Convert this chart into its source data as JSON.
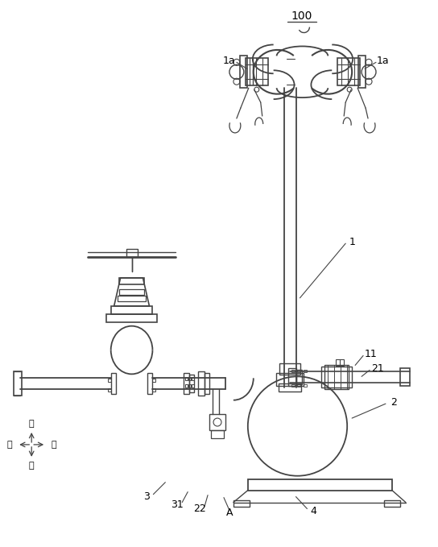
{
  "bg_color": "#ffffff",
  "line_color": "#444444",
  "label_100": "100",
  "label_1a_left": "1a",
  "label_1a_right": "1a",
  "label_1": "1",
  "label_11": "11",
  "label_21": "21",
  "label_2": "2",
  "label_3": "3",
  "label_31": "31",
  "label_22": "22",
  "label_A": "A",
  "label_4": "4",
  "dir_up": "上",
  "dir_front": "前",
  "dir_back": "后",
  "dir_down": "下",
  "figsize": [
    5.44,
    6.79
  ],
  "dpi": 100
}
